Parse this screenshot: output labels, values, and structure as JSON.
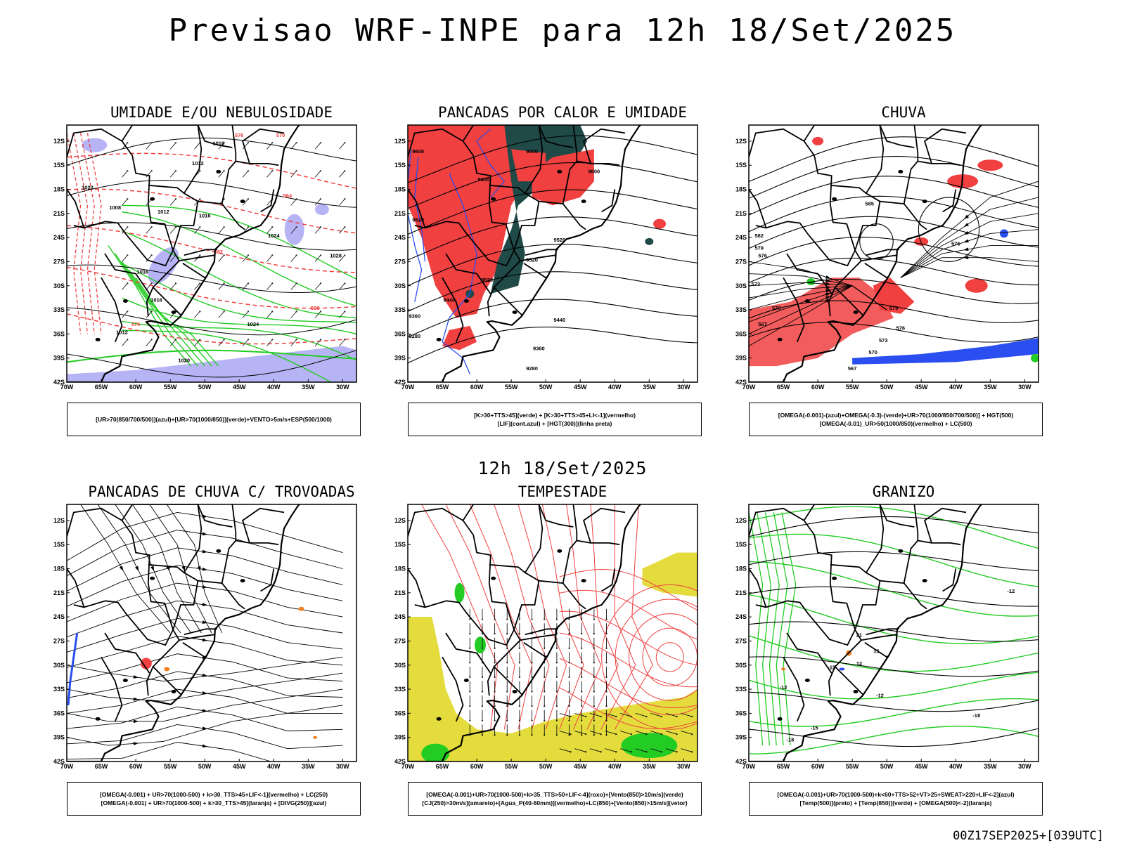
{
  "header": {
    "title": "Previsao WRF-INPE  para 12h 18/Set/2025",
    "subtitle": "12h 18/Set/2025",
    "footer_id": "00Z17SEP2025+[039UTC]"
  },
  "axes": {
    "lat_labels": [
      "12S",
      "15S",
      "18S",
      "21S",
      "24S",
      "27S",
      "30S",
      "33S",
      "36S",
      "39S",
      "42S"
    ],
    "lon_labels": [
      "70W",
      "65W",
      "60W",
      "55W",
      "50W",
      "45W",
      "40W",
      "35W",
      "30W"
    ]
  },
  "panels": [
    {
      "id": "umidade",
      "title": "UMIDADE E/OU NEBULOSIDADE",
      "legend": [
        "[UR>70(850/700/500)](azul)+[UR>70(1000/850)](verde)+VENTO>5m/s+ESP(500/1000)"
      ],
      "contour_labels": [
        "1016",
        "1012",
        "1008",
        "1020",
        "1012",
        "1016",
        "1016",
        "1024",
        "1028",
        "1016",
        "1012",
        "1024",
        "1020",
        "576",
        "570",
        "564",
        "582",
        "588",
        "576"
      ]
    },
    {
      "id": "pancadas-calor",
      "title": "PANCADAS POR CALOR E UMIDADE",
      "legend": [
        "[K>30+TTS>45](verde) + [K>30+TTS>45+LI<-1](vermelho)",
        "[LIF](cont.azul) + [HGT(300)](linha preta)"
      ],
      "contour_labels": [
        "9600",
        "9600",
        "9600",
        "9600",
        "9520",
        "9520",
        "9520",
        "9520",
        "9440",
        "9440",
        "9360",
        "9360",
        "9280",
        "9280"
      ]
    },
    {
      "id": "chuva",
      "title": "CHUVA",
      "legend": [
        "[OMEGA(-0.001)-(azul)+OMEGA(-0.3)-(verde)+UR>70(1000/850/700/500)] + HGT(500)",
        "[OMEGA(-0.01)_UR>50(1000/850)(vermelho) + LC(500)"
      ],
      "contour_labels": [
        "585",
        "582",
        "579",
        "576",
        "573",
        "570",
        "567",
        "576",
        "579",
        "576",
        "573",
        "570",
        "567"
      ]
    },
    {
      "id": "trovoadas",
      "title": "PANCADAS DE CHUVA C/ TROVOADAS",
      "legend": [
        "[OMEGA(-0.001) + UR>70(1000-500) + k>30_TTS>45+LIF<-1](vermelho) + LC(250)",
        "[OMEGA(-0.001) + UR>70(1000-500) + k>30_TTS>45](laranja) + [DIVG(250)](azul)"
      ],
      "contour_labels": []
    },
    {
      "id": "tempestade",
      "title": "TEMPESTADE",
      "legend": [
        "[OMEGA(-0.001)+UR>70(1000-500)+k>35_TTS>50+LIF<-4](roxo)+[Vento(850)>10m/s](verde)",
        "[CJ(250)>30m/s](amarelo)+[Agua_P(40-60mm)](vermelho)+LC(850)+[Vento(850)>15m/s](vetor)"
      ],
      "contour_labels": []
    },
    {
      "id": "granizo",
      "title": "GRANIZO",
      "legend": [
        "[OMEGA(-0.001)+UR>70(1000-500)+k<60+TTS>52+VT>25+SWEAT>220+LIF<-2](azul)",
        "[Temp(500)](preto) + [Temp(850)](verde) + [OMEGA(500)<-2](laranja)"
      ],
      "contour_labels": [
        "-12",
        "-12",
        "-12",
        "-15",
        "-15",
        "-18",
        "-18",
        "21",
        "15",
        "12"
      ]
    }
  ],
  "colors": {
    "blue_humidity": "#b7b4f5",
    "green": "#22cc22",
    "red": "#f04040",
    "dark_teal": "#1f4a48",
    "blue": "#2a4ef0",
    "yellow": "#e4dc3c",
    "orange": "#f08020",
    "contour": "#000000"
  }
}
